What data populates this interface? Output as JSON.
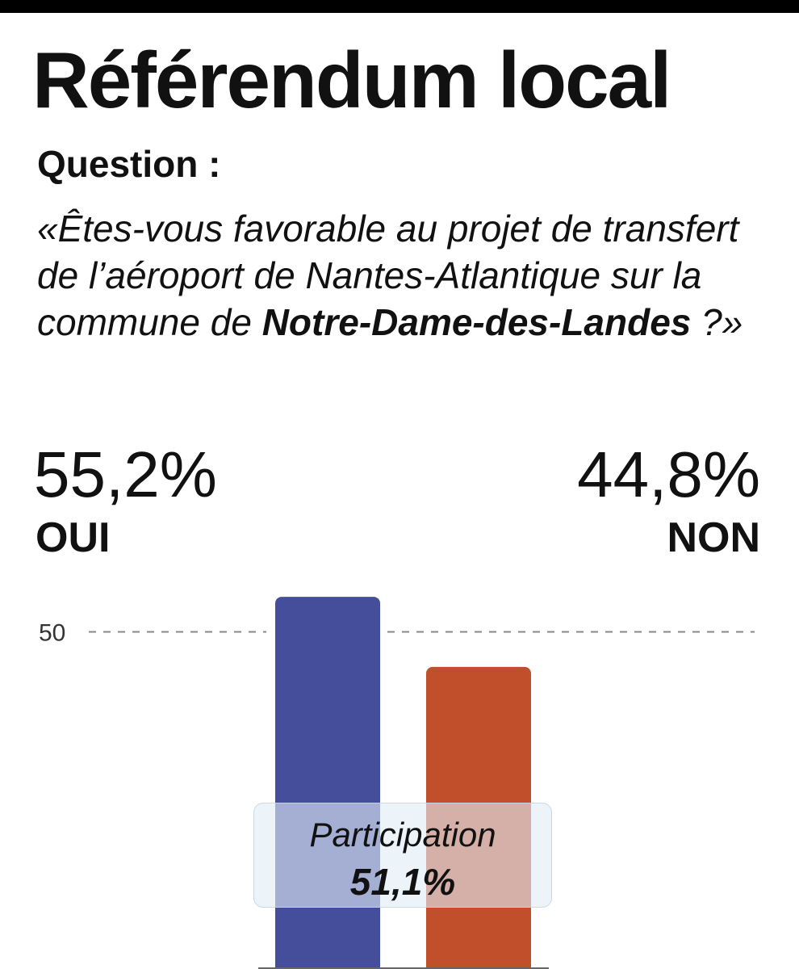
{
  "title": "Référendum local",
  "question_label": "Question :",
  "question": {
    "part1": "«Êtes-vous favorable au projet de transfert de l’aéroport de Nantes-Atlantique sur la commune de ",
    "emphasis": "Notre-Dame-des-Landes",
    "part2": " ?»"
  },
  "results": {
    "oui": {
      "label": "OUI",
      "value_text": "55,2%"
    },
    "non": {
      "label": "NON",
      "value_text": "44,8%"
    }
  },
  "participation": {
    "label": "Participation",
    "value": "51,1%"
  },
  "colors": {
    "oui": "#454e9b",
    "non": "#c24f2c",
    "gridline": "#888888"
  },
  "chart_data": {
    "type": "bar",
    "categories": [
      "OUI",
      "NON"
    ],
    "values": [
      55.2,
      44.8
    ],
    "reference_line": {
      "value": 50,
      "label": "50"
    },
    "title": "Référendum local",
    "xlabel": "",
    "ylabel": ""
  }
}
